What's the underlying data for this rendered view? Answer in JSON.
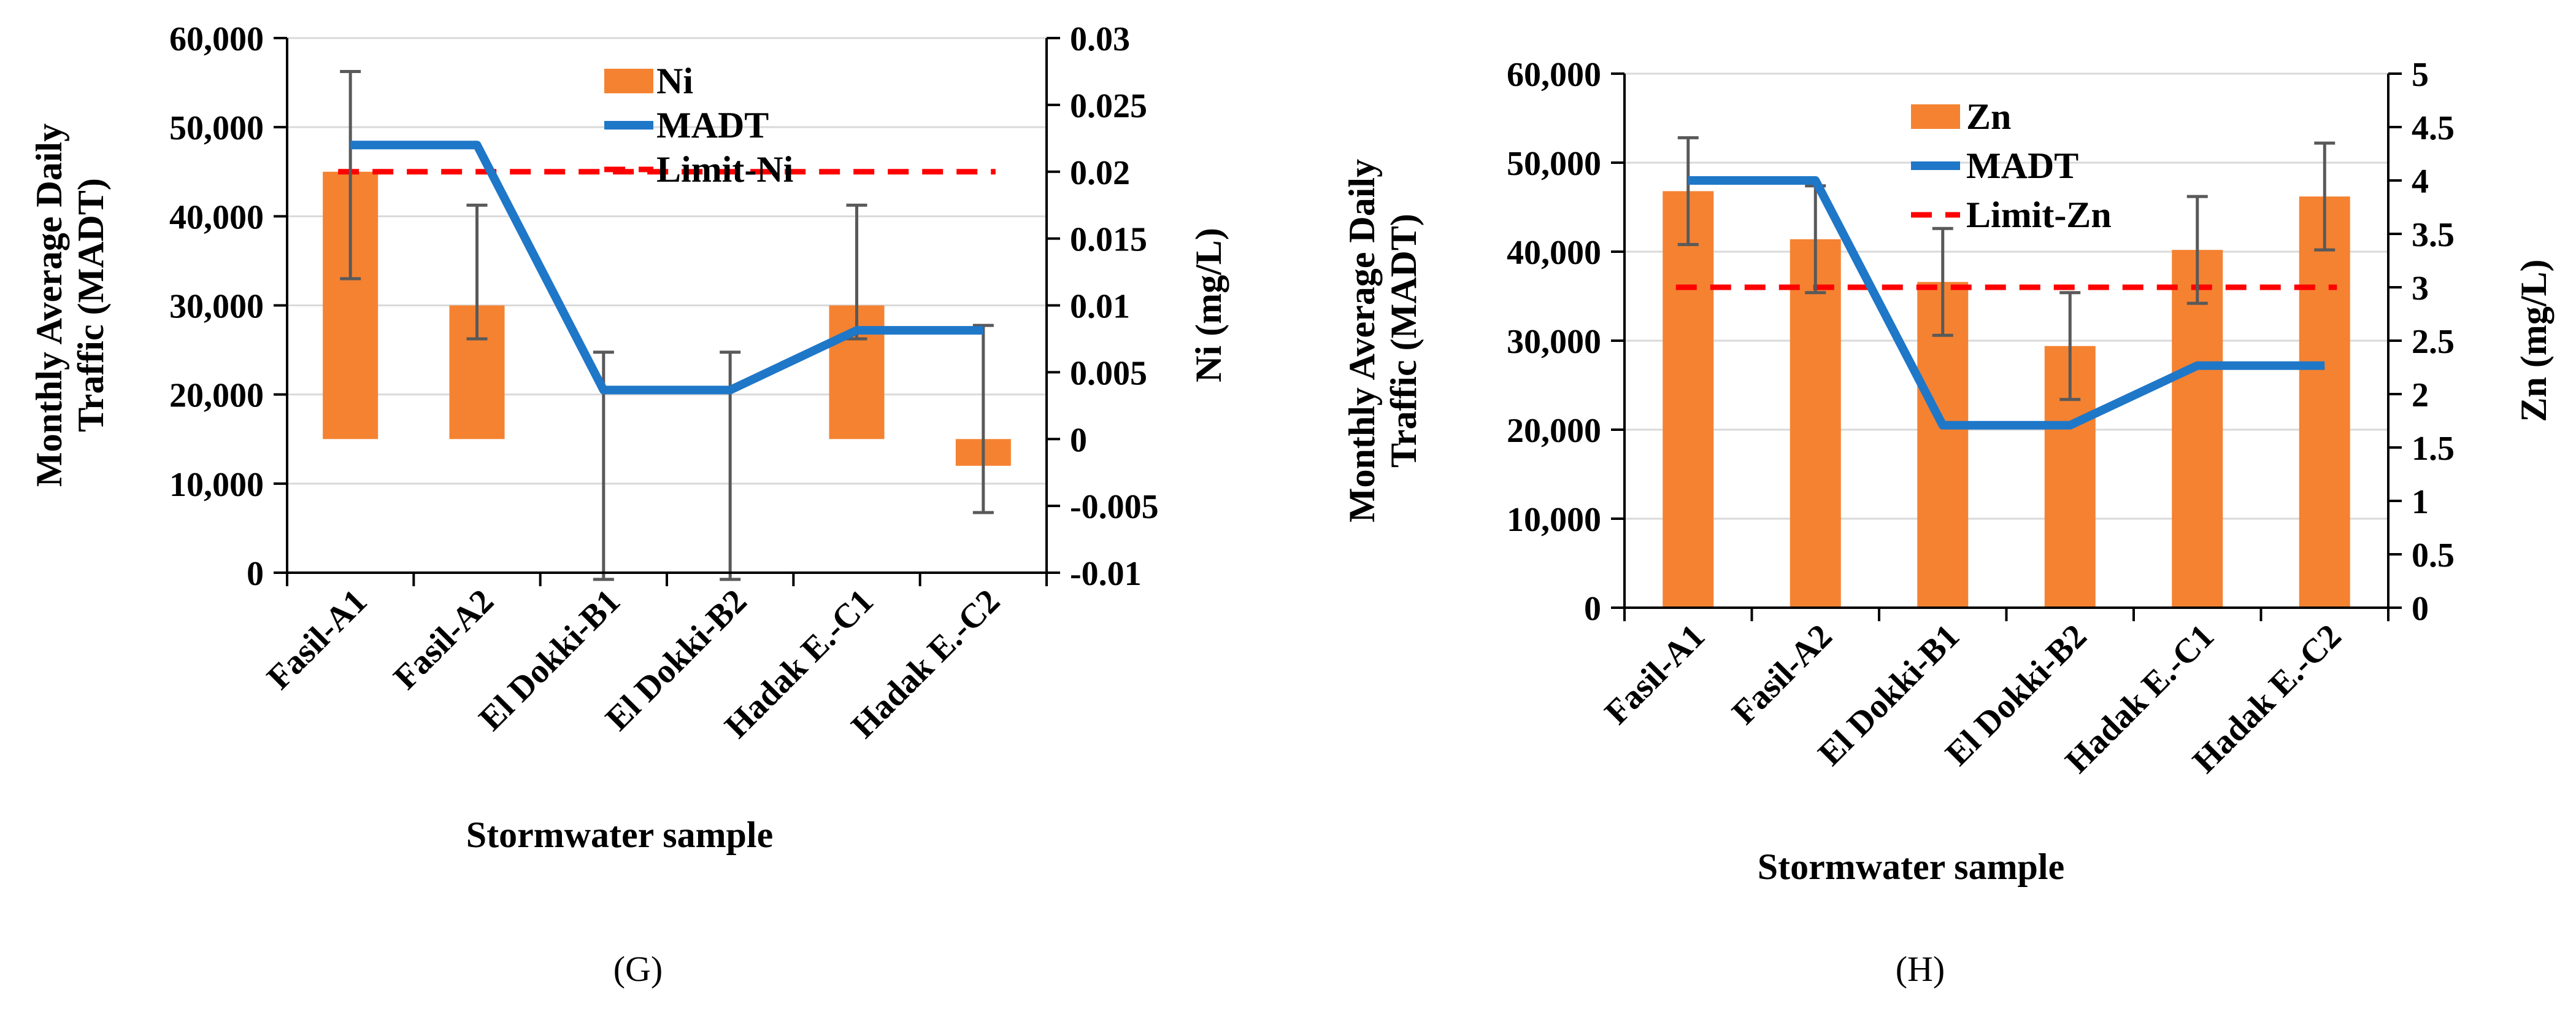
{
  "chart_data": [
    {
      "type": "bar",
      "panel_label": "(G)",
      "categories": [
        "Fasil-A1",
        "Fasil-A2",
        "El Dokki-B1",
        "El Dokki-B2",
        "Hadak E.-C1",
        "Hadak E.-C2"
      ],
      "xlabel": "Stormwater sample",
      "ylabel_left": "Monthly Average Daily Traffic (MADT)",
      "ylabel_left_lines": [
        "Monthly Average Daily",
        "Traffic (MADT)"
      ],
      "ylabel_right": "Ni (mg/L)",
      "ylim_left": [
        0,
        60000
      ],
      "ylim_right": [
        -0.01,
        0.03
      ],
      "left_ticks": [
        0,
        10000,
        20000,
        30000,
        40000,
        50000,
        60000
      ],
      "left_tick_labels": [
        "0",
        "10,000",
        "20,000",
        "30,000",
        "40,000",
        "50,000",
        "60,000"
      ],
      "right_ticks": [
        -0.01,
        -0.005,
        0,
        0.005,
        0.01,
        0.015,
        0.02,
        0.025,
        0.03
      ],
      "right_tick_labels": [
        "-0.01",
        "-0.005",
        "0",
        "0.005",
        "0.01",
        "0.015",
        "0.02",
        "0.025",
        "0.03"
      ],
      "series": [
        {
          "name": "Ni",
          "kind": "bar",
          "axis": "right",
          "color": "#F58231",
          "values": [
            0.02,
            0.01,
            0.0,
            0.0,
            0.01,
            -0.002
          ],
          "error_low": [
            0.012,
            0.0075,
            -0.0105,
            -0.0105,
            0.0075,
            -0.0055
          ],
          "error_high": [
            0.0275,
            0.0175,
            0.0065,
            0.0065,
            0.0175,
            0.0085
          ]
        },
        {
          "name": "MADT",
          "kind": "line",
          "axis": "left",
          "color": "#1F77C8",
          "values": [
            48000,
            48000,
            20500,
            20500,
            27200,
            27200
          ]
        },
        {
          "name": "Limit-Ni",
          "kind": "dashed",
          "axis": "right",
          "color": "#FF0000",
          "value": 0.02
        }
      ],
      "legend": [
        "Ni",
        "MADT",
        "Limit-Ni"
      ],
      "legend_position": "top-center"
    },
    {
      "type": "bar",
      "panel_label": "(H)",
      "categories": [
        "Fasil-A1",
        "Fasil-A2",
        "El Dokki-B1",
        "El Dokki-B2",
        "Hadak E.-C1",
        "Hadak E.-C2"
      ],
      "xlabel": "Stormwater sample",
      "ylabel_left": "Monthly Average Daily Traffic (MADT)",
      "ylabel_left_lines": [
        "Monthly Average Daily",
        "Traffic (MADT)"
      ],
      "ylabel_right": "Zn (mg/L)",
      "ylim_left": [
        0,
        60000
      ],
      "ylim_right": [
        0,
        5
      ],
      "left_ticks": [
        0,
        10000,
        20000,
        30000,
        40000,
        50000,
        60000
      ],
      "left_tick_labels": [
        "0",
        "10,000",
        "20,000",
        "30,000",
        "40,000",
        "50,000",
        "60,000"
      ],
      "right_ticks": [
        0,
        0.5,
        1,
        1.5,
        2,
        2.5,
        3,
        3.5,
        4,
        4.5,
        5
      ],
      "right_tick_labels": [
        "0",
        "0.5",
        "1",
        "1.5",
        "2",
        "2.5",
        "3",
        "3.5",
        "4",
        "4.5",
        "5"
      ],
      "series": [
        {
          "name": "Zn",
          "kind": "bar",
          "axis": "right",
          "color": "#F58231",
          "values": [
            3.9,
            3.45,
            3.05,
            2.45,
            3.35,
            3.85
          ],
          "error_low": [
            3.4,
            2.95,
            2.55,
            1.95,
            2.85,
            3.35
          ],
          "error_high": [
            4.4,
            3.95,
            3.55,
            2.95,
            3.85,
            4.35
          ]
        },
        {
          "name": "MADT",
          "kind": "line",
          "axis": "left",
          "color": "#1F77C8",
          "values": [
            48000,
            48000,
            20500,
            20500,
            27200,
            27200
          ]
        },
        {
          "name": "Limit-Zn",
          "kind": "dashed",
          "axis": "right",
          "color": "#FF0000",
          "value": 3
        }
      ],
      "legend": [
        "Zn",
        "MADT",
        "Limit-Zn"
      ],
      "legend_position": "top-center"
    }
  ]
}
